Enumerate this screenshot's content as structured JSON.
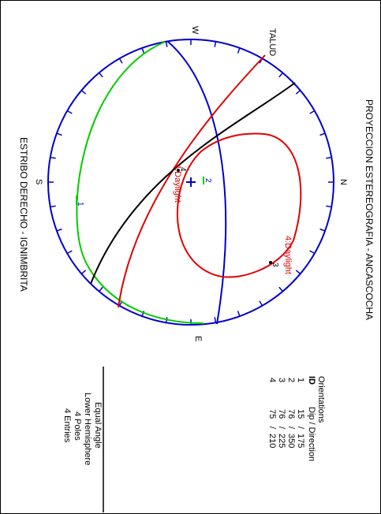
{
  "title": "PROYECCION ESTEREOGRAFIA - ANCASCOCHA",
  "subtitle": "ESTRIBO DERECHO - IGNIMBRITA",
  "compass": {
    "north": "N",
    "south": "S",
    "east": "E",
    "west": "W"
  },
  "slope_label": "TALUD",
  "daylight_label": "4:Daylight",
  "pole_markers": [
    "1",
    "2",
    "3",
    "4"
  ],
  "orientations": {
    "heading": "Orientations",
    "id_header": "ID",
    "column_header": "Dip / Direction",
    "rows": [
      {
        "id": "1",
        "dip": "15",
        "sep": "/",
        "direction": "175"
      },
      {
        "id": "2",
        "dip": "76",
        "sep": "/",
        "direction": "350"
      },
      {
        "id": "3",
        "dip": "76",
        "sep": "/",
        "direction": "225"
      },
      {
        "id": "4",
        "dip": "75",
        "sep": "/",
        "direction": "210"
      }
    ]
  },
  "projection_info": {
    "line1": "Equal Angle",
    "line2": "Lower Hemisphere",
    "line3": "4 Poles",
    "line4": "4 Entries"
  },
  "colors": {
    "primitive": "#0000cc",
    "great_circle_green": "#00cc00",
    "great_circle_red": "#e00000",
    "great_circle_black": "#000000",
    "great_circle_blue": "#0000cc"
  }
}
